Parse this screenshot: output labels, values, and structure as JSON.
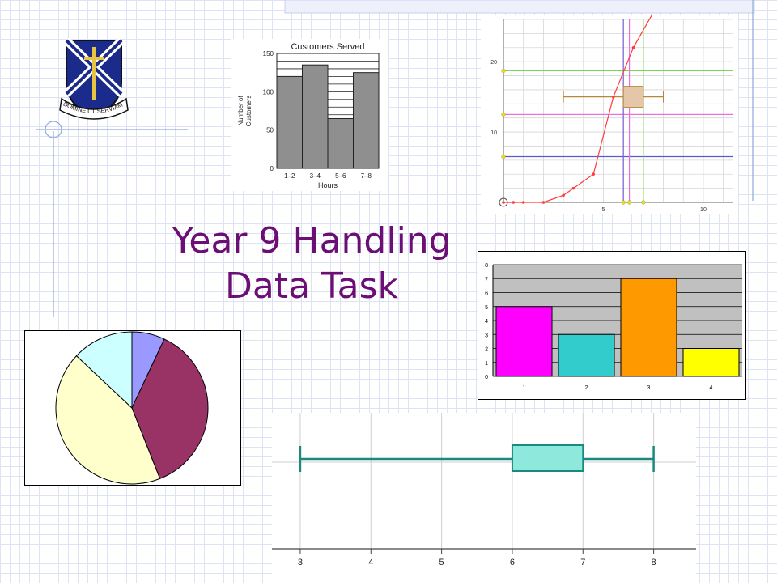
{
  "slide": {
    "title_line1": "Year 9 Handling",
    "title_line2": "Data Task",
    "logo_motto": "DOMINE UT SERVIAM",
    "colors": {
      "title": "#6b0f74",
      "grid": "#dde3f3",
      "shield_blue": "#1b2b8c",
      "shield_gold": "#e8c540"
    }
  },
  "chart_data": [
    {
      "type": "bar",
      "title": "Customers Served",
      "xlabel": "Hours",
      "ylabel": "Number of Customers",
      "categories": [
        "1–2",
        "3–4",
        "5–6",
        "7–8"
      ],
      "values": [
        120,
        135,
        65,
        125
      ],
      "ylim": [
        0,
        150
      ],
      "yticks": [
        0,
        50,
        100,
        150
      ],
      "grid": true,
      "colors": {
        "bar": "#8f8f8f"
      }
    },
    {
      "type": "line",
      "title": "",
      "x": [
        0,
        0.5,
        1,
        2,
        3,
        3.5,
        4.5,
        5.5,
        6.5,
        7.5,
        8.5,
        9.5,
        10.5
      ],
      "values": [
        0,
        0,
        0,
        0,
        1,
        2,
        4,
        15,
        22,
        27,
        27,
        27,
        27
      ],
      "xlim": [
        0,
        11.5
      ],
      "ylim": [
        0,
        26
      ],
      "xticks": [
        5,
        10
      ],
      "yticks": [
        10,
        20
      ],
      "horizontal_lines": [
        6.5,
        12.5,
        18.7
      ],
      "vertical_lines": [
        6,
        6.3,
        7
      ],
      "boxplot": {
        "min": 3,
        "q1": 6,
        "median": 6.3,
        "q3": 7,
        "max": 8,
        "y": 15
      },
      "colors": {
        "curve": "#ff3b3b",
        "box": "#e3c7a8",
        "v_lines": [
          "#7a5cd0",
          "#e870e0",
          "#7ad65a"
        ],
        "h_lines": [
          "#5a5ad0",
          "#e870e0",
          "#7ad65a"
        ]
      }
    },
    {
      "type": "bar",
      "title": "",
      "categories": [
        "1",
        "2",
        "3",
        "4"
      ],
      "values": [
        5,
        3,
        7,
        2
      ],
      "ylim": [
        0,
        8
      ],
      "yticks": [
        "0",
        "1",
        "2",
        "3",
        "4",
        "5",
        "6",
        "7",
        "8"
      ],
      "grid": true,
      "colors": {
        "plot_bg": "#c0c0c0",
        "bars": [
          "#ff00ff",
          "#33cccc",
          "#ff9900",
          "#ffff00"
        ]
      }
    },
    {
      "type": "pie",
      "title": "",
      "values": [
        7,
        37,
        43,
        13
      ],
      "colors": [
        "#9999ff",
        "#993366",
        "#ffffcc",
        "#ccffff"
      ]
    },
    {
      "type": "boxplot",
      "title": "",
      "min": 3,
      "q1": 6,
      "median": 7,
      "q3": 7,
      "max": 8,
      "xlim": [
        2.6,
        8.6
      ],
      "xticks": [
        "3",
        "4",
        "5",
        "6",
        "7",
        "8"
      ],
      "grid": true,
      "colors": {
        "box_fill": "#8ee8dc",
        "line": "#1a8a80"
      }
    }
  ]
}
